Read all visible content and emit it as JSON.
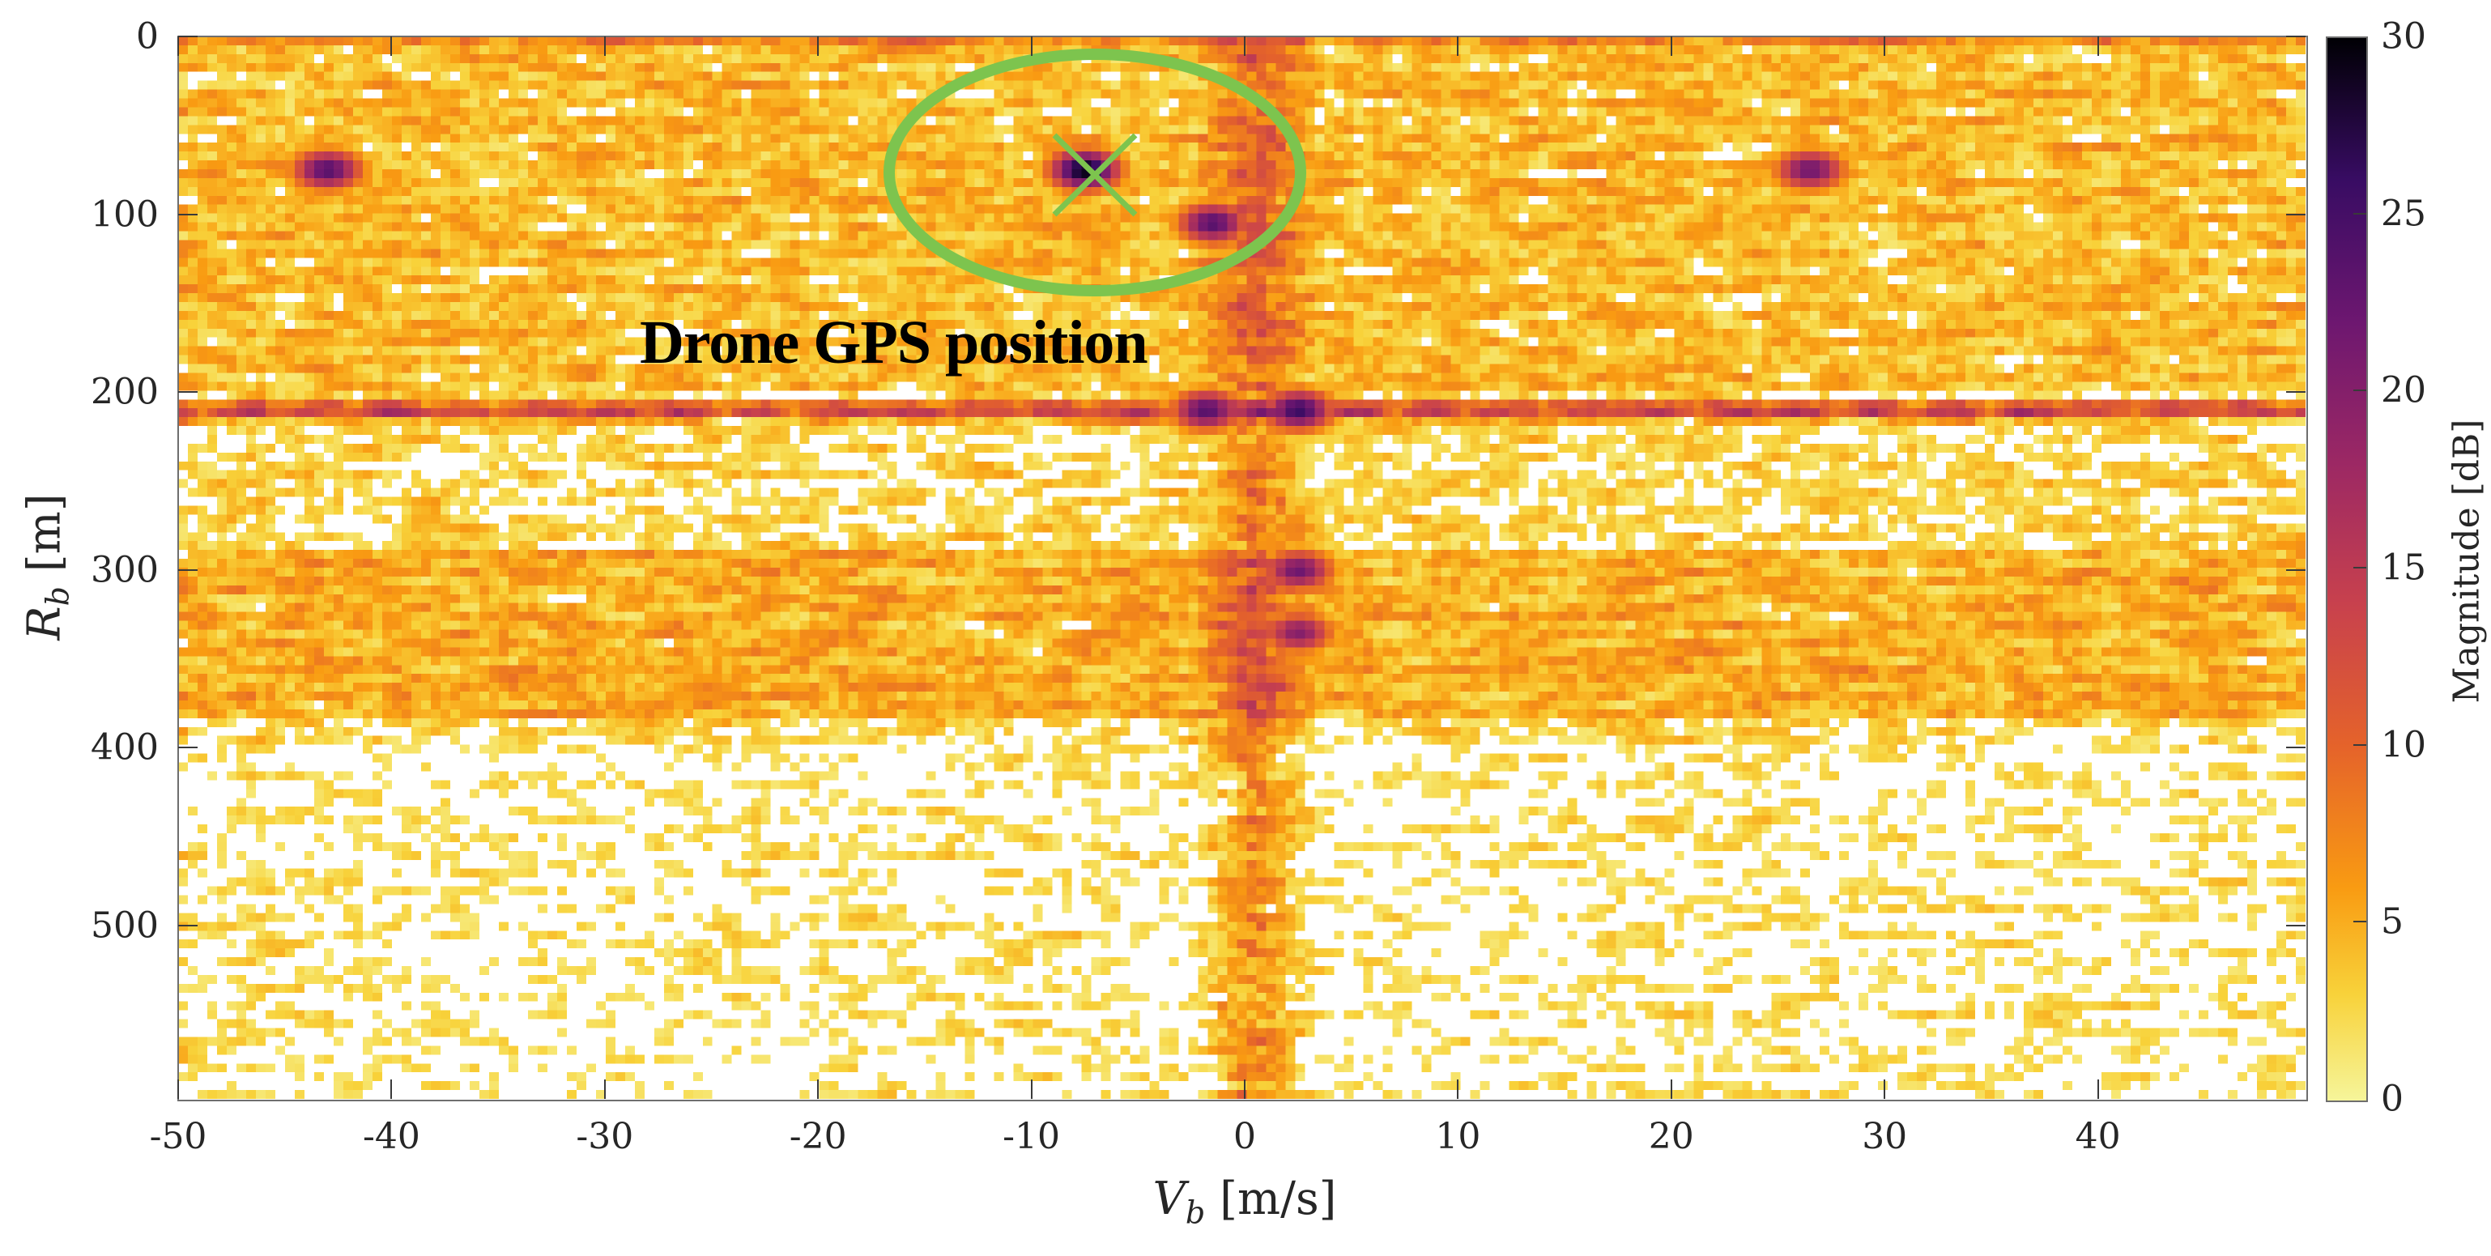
{
  "chart_data": {
    "type": "heatmap",
    "title": "",
    "xlabel": "V_b [m/s]",
    "xlabel_parts": {
      "symbol": "V",
      "subscript": "b",
      "unit": "[m/s]"
    },
    "ylabel": "R_b [m]",
    "ylabel_parts": {
      "symbol": "R",
      "subscript": "b",
      "unit": "[m]"
    },
    "xlim": [
      -50,
      49.7
    ],
    "ylim": [
      597,
      0
    ],
    "y_reversed": true,
    "x_ticks": [
      -50,
      -40,
      -30,
      -20,
      -10,
      0,
      10,
      20,
      30,
      40
    ],
    "x_tick_labels": [
      "-50",
      "-40",
      "-30",
      "-20",
      "-10",
      "0",
      "10",
      "20",
      "30",
      "40"
    ],
    "y_ticks": [
      0,
      100,
      200,
      300,
      400,
      500
    ],
    "y_tick_labels": [
      "0",
      "100",
      "200",
      "300",
      "400",
      "500"
    ],
    "grid_resolution": {
      "cols": 219,
      "rows": 120
    },
    "colorbar": {
      "label": "Magnitude [dB]",
      "colormap": "inferno (reversed, white below threshold)",
      "clim": [
        0,
        30
      ],
      "ticks": [
        0,
        5,
        10,
        15,
        20,
        25,
        30
      ],
      "tick_labels": [
        "0",
        "5",
        "10",
        "15",
        "20",
        "25",
        "30"
      ],
      "stops": [
        {
          "v": 0,
          "color": "#f6f59a"
        },
        {
          "v": 3,
          "color": "#f8d23a"
        },
        {
          "v": 6,
          "color": "#f99b12"
        },
        {
          "v": 10,
          "color": "#e5632a"
        },
        {
          "v": 14,
          "color": "#c8414d"
        },
        {
          "v": 18,
          "color": "#9c2864"
        },
        {
          "v": 22,
          "color": "#6d1770"
        },
        {
          "v": 26,
          "color": "#380c63"
        },
        {
          "v": 30,
          "color": "#000004"
        }
      ]
    },
    "features": [
      {
        "kind": "horizontal_band",
        "range_m": 210,
        "peak_db": 24,
        "note": "strong clutter row across all velocities"
      },
      {
        "kind": "horizontal_band",
        "range_m": 0,
        "peak_db": 14,
        "note": "top edge row"
      },
      {
        "kind": "vertical_band",
        "velocity_ms": 0.5,
        "peak_db": 18,
        "note": "zero-Doppler column across ranges"
      },
      {
        "kind": "region",
        "velocity_ms": [
          -50,
          50
        ],
        "range_m": [
          290,
          380
        ],
        "peak_db": 14,
        "note": "denser clutter band"
      },
      {
        "kind": "hotspot",
        "velocity_ms": -7.5,
        "range_m": 75,
        "peak_db": 30,
        "note": "drone target"
      },
      {
        "kind": "hotspot",
        "velocity_ms": -1.5,
        "range_m": 105,
        "peak_db": 24
      },
      {
        "kind": "hotspot",
        "velocity_ms": -43,
        "range_m": 75,
        "peak_db": 24
      },
      {
        "kind": "hotspot",
        "velocity_ms": 26.5,
        "range_m": 75,
        "peak_db": 22
      },
      {
        "kind": "hotspot",
        "velocity_ms": 2.5,
        "range_m": 210,
        "peak_db": 26
      },
      {
        "kind": "hotspot",
        "velocity_ms": -1.8,
        "range_m": 210,
        "peak_db": 24
      },
      {
        "kind": "hotspot",
        "velocity_ms": 2.5,
        "range_m": 300,
        "peak_db": 22
      },
      {
        "kind": "hotspot",
        "velocity_ms": 2.5,
        "range_m": 335,
        "peak_db": 20
      }
    ],
    "annotations": [
      {
        "type": "ellipse",
        "center": {
          "v": -7.2,
          "r": 76
        },
        "semi_axes": {
          "v": 9.7,
          "r": 67
        },
        "color": "#7dc44e"
      },
      {
        "type": "x_marker",
        "at": {
          "v": -7.2,
          "r": 76
        },
        "label": "Drone GPS position",
        "color": "#7dc44e"
      },
      {
        "type": "text",
        "text": "Drone GPS position",
        "at": {
          "v": -21.7,
          "r": 175
        },
        "font_weight": "bold"
      }
    ]
  },
  "annotation": {
    "text": "Drone GPS position",
    "marker_color": "#7dc44e"
  }
}
